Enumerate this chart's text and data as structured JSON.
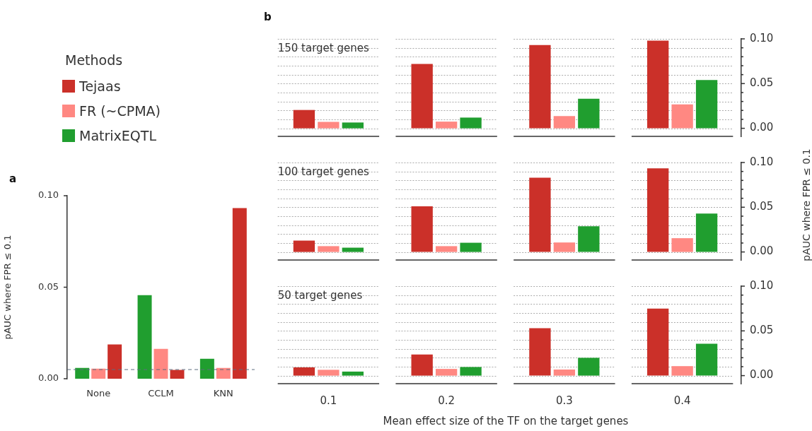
{
  "chart_data": [
    {
      "type": "bar",
      "annotations": [
        "a"
      ],
      "ylabel": "pAUC where FPR ≤ 0.1",
      "legend_title": "Methods",
      "legend": "top left",
      "categories": [
        "None",
        "CCLM",
        "KNN"
      ],
      "ylim": [
        0,
        0.1
      ],
      "yticks": [
        {
          "value": 0,
          "label": "0.00"
        },
        {
          "value": 0.05,
          "label": "0.05"
        },
        {
          "value": 0.1,
          "label": "0.10"
        }
      ],
      "ref_lines": [
        {
          "axis": "y",
          "value": 0.005,
          "color": "#5d6d7e",
          "line_style": "dashed"
        }
      ],
      "series": [
        {
          "name": "MatrixEQTL",
          "color": "#209e2f",
          "values": [
            0.0059,
            0.0457,
            0.0109
          ]
        },
        {
          "name": "FR (~CPMA)",
          "color": "#ff8882",
          "values": [
            0.0055,
            0.0163,
            0.0059
          ]
        },
        {
          "name": "Tejaas",
          "color": "#cb3029",
          "values": [
            0.0187,
            0.0048,
            0.0932
          ]
        }
      ]
    },
    {
      "type": "bar",
      "annotations": [
        "b"
      ],
      "title": "150 target genes",
      "categories": [
        null,
        null,
        null,
        null
      ],
      "tick_labels": "y",
      "grid": "y",
      "ylim": [
        -0.009,
        0.1
      ],
      "yticks": [
        {
          "value": 0,
          "label": "0.00"
        },
        {
          "value": 0.01,
          "label": null
        },
        {
          "value": 0.02,
          "label": null
        },
        {
          "value": 0.03,
          "label": null
        },
        {
          "value": 0.04,
          "label": null
        },
        {
          "value": 0.05,
          "label": "0.05"
        },
        {
          "value": 0.06,
          "label": null
        },
        {
          "value": 0.07,
          "label": null
        },
        {
          "value": 0.08,
          "label": null
        },
        {
          "value": 0.09,
          "label": null
        },
        {
          "value": 0.1,
          "label": "0.10"
        }
      ],
      "series": [
        {
          "color": "#cb3029",
          "values": [
            0.0205,
            0.072,
            0.093,
            0.098
          ]
        },
        {
          "color": "#ff8882",
          "values": [
            0.0072,
            0.0075,
            0.0137,
            0.0267
          ]
        },
        {
          "color": "#209e2f",
          "values": [
            0.0065,
            0.012,
            0.033,
            0.054
          ]
        }
      ]
    },
    {
      "type": "bar",
      "title": "100 target genes",
      "ylabel": "pAUC where FPR ≤ 0.1",
      "categories": [
        null,
        null,
        null,
        null
      ],
      "tick_labels": "y",
      "grid": "y",
      "ylim": [
        -0.009,
        0.1
      ],
      "yticks": [
        {
          "value": 0,
          "label": "0.00"
        },
        {
          "value": 0.01,
          "label": null
        },
        {
          "value": 0.02,
          "label": null
        },
        {
          "value": 0.03,
          "label": null
        },
        {
          "value": 0.04,
          "label": null
        },
        {
          "value": 0.05,
          "label": "0.05"
        },
        {
          "value": 0.06,
          "label": null
        },
        {
          "value": 0.07,
          "label": null
        },
        {
          "value": 0.08,
          "label": null
        },
        {
          "value": 0.09,
          "label": null
        },
        {
          "value": 0.1,
          "label": "0.10"
        }
      ],
      "series": [
        {
          "color": "#cb3029",
          "values": [
            0.0127,
            0.051,
            0.083,
            0.0935
          ]
        },
        {
          "color": "#ff8882",
          "values": [
            0.0065,
            0.0065,
            0.0106,
            0.0154
          ]
        },
        {
          "color": "#209e2f",
          "values": [
            0.0048,
            0.0103,
            0.0288,
            0.043
          ]
        }
      ]
    },
    {
      "type": "bar",
      "title": "50 target genes",
      "xlabel": "Mean effect size of the TF on the target genes",
      "categories": [
        "0.1",
        "0.2",
        "0.3",
        "0.4"
      ],
      "grid": "y",
      "ylim": [
        -0.009,
        0.1
      ],
      "yticks": [
        {
          "value": 0,
          "label": "0.00"
        },
        {
          "value": 0.01,
          "label": null
        },
        {
          "value": 0.02,
          "label": null
        },
        {
          "value": 0.03,
          "label": null
        },
        {
          "value": 0.04,
          "label": null
        },
        {
          "value": 0.05,
          "label": "0.05"
        },
        {
          "value": 0.06,
          "label": null
        },
        {
          "value": 0.07,
          "label": null
        },
        {
          "value": 0.08,
          "label": null
        },
        {
          "value": 0.09,
          "label": null
        },
        {
          "value": 0.1,
          "label": "0.10"
        }
      ],
      "series": [
        {
          "color": "#cb3029",
          "values": [
            0.0092,
            0.0236,
            0.053,
            0.075
          ]
        },
        {
          "color": "#ff8882",
          "values": [
            0.0065,
            0.0075,
            0.0068,
            0.0106
          ]
        },
        {
          "color": "#209e2f",
          "values": [
            0.0045,
            0.0096,
            0.0199,
            0.0356
          ]
        }
      ]
    }
  ]
}
